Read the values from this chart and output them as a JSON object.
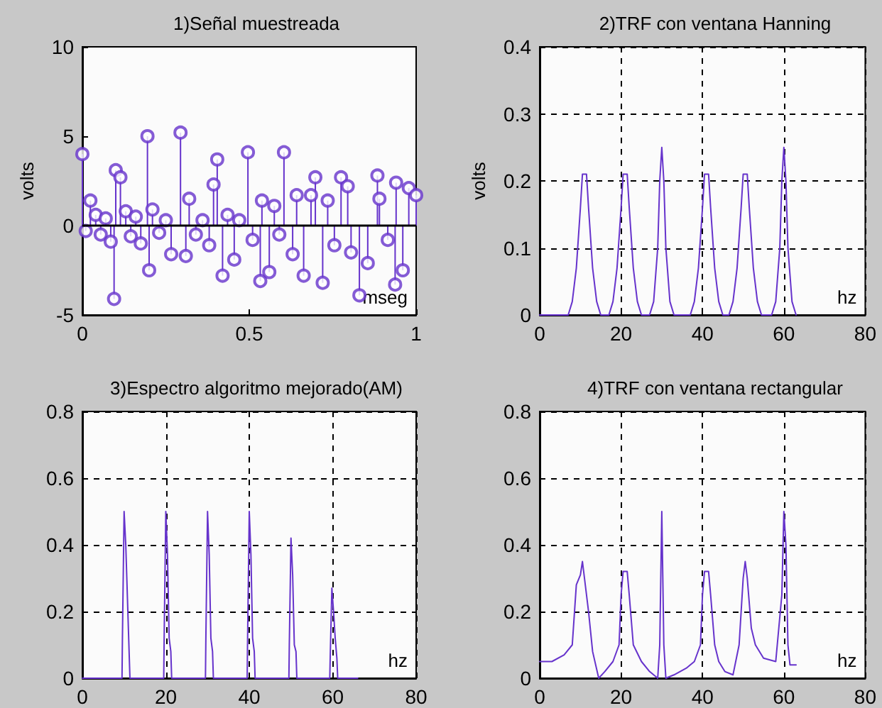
{
  "chart_data": [
    {
      "type": "lollipop",
      "title": "1)Señal muestreada",
      "xlabel": "mseg",
      "ylabel": "volts",
      "color": "#6633cc",
      "marker": "circle",
      "grid": false,
      "xlim": [
        0,
        1
      ],
      "ylim": [
        -5,
        10
      ],
      "xticks": [
        0,
        0.5,
        1
      ],
      "yticks": [
        -5,
        0,
        5,
        10
      ],
      "x": [
        0,
        0.01,
        0.024,
        0.04,
        0.055,
        0.07,
        0.085,
        0.095,
        0.1,
        0.114,
        0.13,
        0.145,
        0.16,
        0.175,
        0.195,
        0.2,
        0.21,
        0.23,
        0.25,
        0.266,
        0.294,
        0.31,
        0.32,
        0.34,
        0.36,
        0.38,
        0.393,
        0.404,
        0.42,
        0.435,
        0.455,
        0.47,
        0.496,
        0.51,
        0.533,
        0.538,
        0.56,
        0.575,
        0.59,
        0.604,
        0.63,
        0.642,
        0.663,
        0.685,
        0.698,
        0.72,
        0.735,
        0.755,
        0.775,
        0.795,
        0.805,
        0.83,
        0.855,
        0.884,
        0.89,
        0.915,
        0.937,
        0.94,
        0.96,
        0.978,
        1.0
      ],
      "values": [
        4.0,
        -0.3,
        1.4,
        0.6,
        -0.5,
        0.4,
        -0.9,
        -4.1,
        3.1,
        2.7,
        0.8,
        -0.6,
        0.5,
        -1.0,
        5.0,
        -2.5,
        0.9,
        -0.4,
        0.3,
        -1.6,
        5.2,
        -1.7,
        1.5,
        -0.5,
        0.3,
        -1.1,
        2.3,
        3.7,
        -2.8,
        0.6,
        -1.9,
        0.3,
        4.1,
        -0.8,
        -3.1,
        1.4,
        -2.6,
        1.1,
        -0.5,
        4.1,
        -1.6,
        1.7,
        -2.8,
        1.7,
        2.7,
        -3.2,
        1.4,
        -1.1,
        2.7,
        2.2,
        -1.5,
        -3.9,
        -2.1,
        2.8,
        1.5,
        -0.8,
        -3.3,
        2.4,
        -2.5,
        2.1,
        1.7
      ],
      "ref_lines": [
        {
          "axis": "y",
          "value": 0,
          "color": "#000000"
        }
      ]
    },
    {
      "type": "line",
      "title": "2)TRF con ventana Hanning",
      "xlabel": "hz",
      "ylabel": "volts",
      "color": "#6633cc",
      "grid": true,
      "xlim": [
        0,
        80
      ],
      "ylim": [
        0,
        0.4
      ],
      "xticks": [
        0,
        20,
        40,
        60,
        80
      ],
      "yticks": [
        0,
        0.1,
        0.2,
        0.3,
        0.4
      ],
      "x": [
        0,
        7,
        8,
        9,
        10,
        10.5,
        11.5,
        12,
        13,
        14,
        15,
        17,
        18,
        19,
        20,
        20.5,
        21.5,
        22,
        23,
        24,
        25,
        27,
        28,
        29,
        29.5,
        30,
        30.5,
        31,
        32,
        33,
        37,
        38,
        39,
        40,
        40.5,
        41.5,
        42,
        43,
        44,
        45,
        46.5,
        47.5,
        48.5,
        49.5,
        50,
        51,
        51.5,
        52.5,
        53.5,
        54.5,
        57,
        58,
        59,
        59.5,
        60,
        60.5,
        61,
        62,
        63
      ],
      "values": [
        0,
        0,
        0.02,
        0.07,
        0.16,
        0.21,
        0.21,
        0.16,
        0.07,
        0.02,
        0,
        0,
        0.02,
        0.07,
        0.16,
        0.21,
        0.21,
        0.16,
        0.07,
        0.02,
        0,
        0,
        0.02,
        0.1,
        0.2,
        0.25,
        0.2,
        0.1,
        0.02,
        0,
        0,
        0.02,
        0.07,
        0.16,
        0.21,
        0.21,
        0.16,
        0.07,
        0.02,
        0,
        0,
        0.02,
        0.07,
        0.16,
        0.21,
        0.21,
        0.16,
        0.07,
        0.02,
        0,
        0,
        0.02,
        0.1,
        0.2,
        0.25,
        0.2,
        0.1,
        0.02,
        0
      ]
    },
    {
      "type": "line",
      "title": "3)Espectro algoritmo mejorado(AM)",
      "xlabel": "hz",
      "color": "#6633cc",
      "grid": true,
      "xlim": [
        0,
        80
      ],
      "ylim": [
        0,
        0.8
      ],
      "xticks": [
        0,
        20,
        40,
        60,
        80
      ],
      "yticks": [
        0,
        0.2,
        0.4,
        0.6,
        0.8
      ],
      "x": [
        0,
        9.5,
        9.6,
        10,
        10.4,
        10.8,
        11.2,
        11.4,
        19.5,
        19.6,
        20,
        20.4,
        20.8,
        21.2,
        21.4,
        29.5,
        29.6,
        30,
        30.4,
        30.8,
        31.2,
        31.4,
        39.5,
        39.6,
        40,
        40.4,
        40.8,
        41.2,
        41.4,
        49.5,
        49.6,
        50,
        50.4,
        50.8,
        51.2,
        51.4,
        59.3,
        59.4,
        59.8,
        60.2,
        60.6,
        61,
        61.2,
        66
      ],
      "values": [
        0,
        0,
        0.12,
        0.5,
        0.4,
        0.24,
        0.08,
        0,
        0,
        0.12,
        0.5,
        0.37,
        0.12,
        0.08,
        0,
        0,
        0.12,
        0.5,
        0.37,
        0.12,
        0.08,
        0,
        0,
        0.12,
        0.5,
        0.37,
        0.12,
        0.08,
        0,
        0,
        0.1,
        0.42,
        0.31,
        0.1,
        0.08,
        0,
        0,
        0.06,
        0.27,
        0.2,
        0.12,
        0.06,
        0,
        0
      ]
    },
    {
      "type": "line",
      "title": "4)TRF con ventana rectangular",
      "xlabel": "hz",
      "color": "#6633cc",
      "grid": true,
      "xlim": [
        0,
        80
      ],
      "ylim": [
        0,
        0.8
      ],
      "xticks": [
        0,
        20,
        40,
        60,
        80
      ],
      "yticks": [
        0,
        0.2,
        0.4,
        0.6,
        0.8
      ],
      "x": [
        0,
        3,
        6,
        8,
        9,
        10,
        10.5,
        11,
        12,
        13,
        14.5,
        16,
        18,
        19.5,
        20,
        20.5,
        21.5,
        22,
        23,
        25,
        27,
        29,
        29.5,
        30,
        30.5,
        31,
        33,
        36,
        38,
        39.5,
        40,
        40.5,
        41.5,
        42,
        43,
        44,
        45.5,
        47.5,
        49,
        50,
        50.5,
        51,
        52,
        53,
        55,
        58,
        59.5,
        60,
        60.5,
        61,
        61.5,
        63
      ],
      "values": [
        0.05,
        0.05,
        0.07,
        0.1,
        0.28,
        0.31,
        0.35,
        0.3,
        0.2,
        0.08,
        0,
        0.02,
        0.05,
        0.1,
        0.25,
        0.32,
        0.32,
        0.25,
        0.1,
        0.05,
        0.02,
        0,
        0.1,
        0.5,
        0.1,
        0,
        0.01,
        0.03,
        0.05,
        0.1,
        0.25,
        0.32,
        0.32,
        0.25,
        0.1,
        0.05,
        0.02,
        0.01,
        0.1,
        0.3,
        0.35,
        0.3,
        0.15,
        0.1,
        0.06,
        0.05,
        0.25,
        0.5,
        0.4,
        0.1,
        0.04,
        0.04
      ]
    }
  ]
}
